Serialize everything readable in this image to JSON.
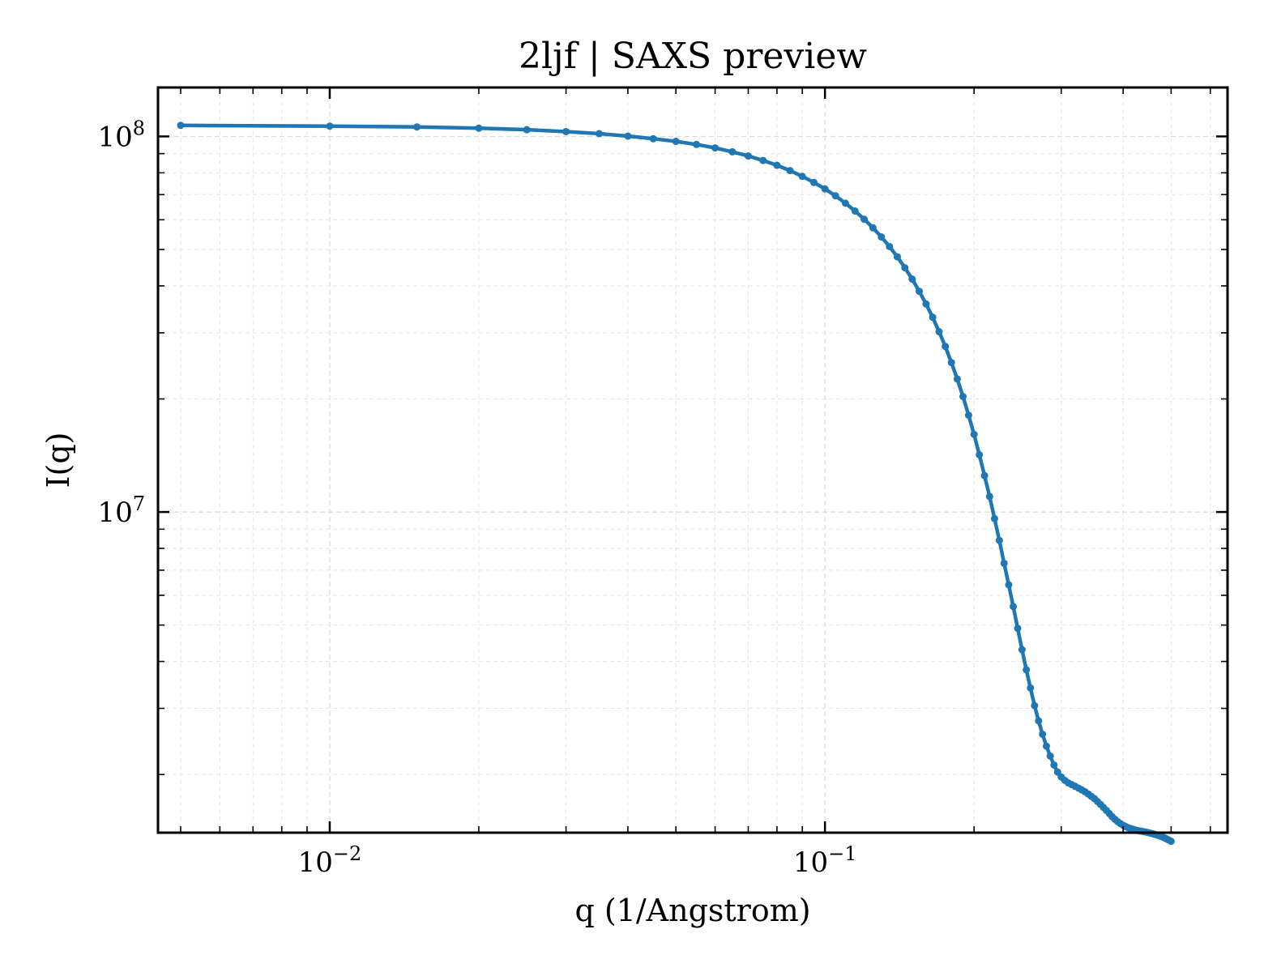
{
  "chart_data": {
    "type": "line",
    "title": "2ljf | SAXS preview",
    "xlabel": "q (1/Angstrom)",
    "ylabel": "I(q)",
    "xscale": "log",
    "yscale": "log",
    "xlim": [
      0.0045,
      0.65
    ],
    "ylim": [
      1400000,
      135000000
    ],
    "xticks": [
      {
        "base": "10",
        "exp": "−2",
        "value": 0.01
      },
      {
        "base": "10",
        "exp": "−1",
        "value": 0.1
      }
    ],
    "yticks": [
      {
        "base": "10",
        "exp": "7",
        "value": 10000000
      },
      {
        "base": "10",
        "exp": "8",
        "value": 100000000
      }
    ],
    "grid": true,
    "color": "#1f77b4",
    "series": [
      {
        "x": [
          0.005,
          0.01,
          0.015,
          0.02,
          0.025,
          0.03,
          0.035,
          0.04,
          0.045,
          0.05,
          0.055,
          0.06,
          0.065,
          0.07,
          0.075,
          0.08,
          0.085,
          0.09,
          0.095,
          0.1,
          0.105,
          0.11,
          0.115,
          0.12,
          0.125,
          0.13,
          0.135,
          0.14,
          0.145,
          0.15,
          0.155,
          0.16,
          0.165,
          0.17,
          0.175,
          0.18,
          0.185,
          0.19,
          0.195,
          0.2,
          0.205,
          0.21,
          0.215,
          0.22,
          0.225,
          0.23,
          0.235,
          0.24,
          0.245,
          0.25,
          0.255,
          0.26,
          0.265,
          0.27,
          0.275,
          0.28,
          0.285,
          0.29,
          0.295,
          0.3,
          0.305,
          0.31,
          0.315,
          0.32,
          0.325,
          0.33,
          0.335,
          0.34,
          0.345,
          0.35,
          0.355,
          0.36,
          0.365,
          0.37,
          0.375,
          0.38,
          0.385,
          0.39,
          0.395,
          0.4,
          0.405,
          0.41,
          0.415,
          0.42,
          0.425,
          0.43,
          0.435,
          0.44,
          0.445,
          0.45,
          0.455,
          0.46,
          0.465,
          0.47,
          0.475,
          0.48,
          0.485,
          0.49,
          0.495,
          0.5
        ],
        "y": [
          107000000,
          106500000,
          106000000,
          105200000,
          104200000,
          103000000,
          101700000,
          100200000,
          98600000,
          97000000,
          95200000,
          93200000,
          91000000,
          88700000,
          86300000,
          83800000,
          81100000,
          78300000,
          75400000,
          72500000,
          69500000,
          66400000,
          63300000,
          60200000,
          57100000,
          54000000,
          50900000,
          47800000,
          44700000,
          41700000,
          38700000,
          35800000,
          33000000,
          30200000,
          27600000,
          25000000,
          22600000,
          20300000,
          18100000,
          16100000,
          14200000,
          12500000,
          11000000,
          9600000,
          8400000,
          7300000,
          6400000,
          5600000,
          4900000,
          4300000,
          3800000,
          3400000,
          3050000,
          2780000,
          2560000,
          2380000,
          2240000,
          2120000,
          2030000,
          1970000,
          1930000,
          1900000,
          1880000,
          1860000,
          1840000,
          1820000,
          1800000,
          1775000,
          1750000,
          1725000,
          1695000,
          1665000,
          1635000,
          1605000,
          1575000,
          1545000,
          1520000,
          1498000,
          1480000,
          1465000,
          1453000,
          1443000,
          1435000,
          1428000,
          1422000,
          1417000,
          1413000,
          1409000,
          1405000,
          1400000,
          1395000,
          1390000,
          1384000,
          1378000,
          1371000,
          1364000,
          1356000,
          1347000,
          1338000,
          1328000
        ]
      }
    ]
  }
}
